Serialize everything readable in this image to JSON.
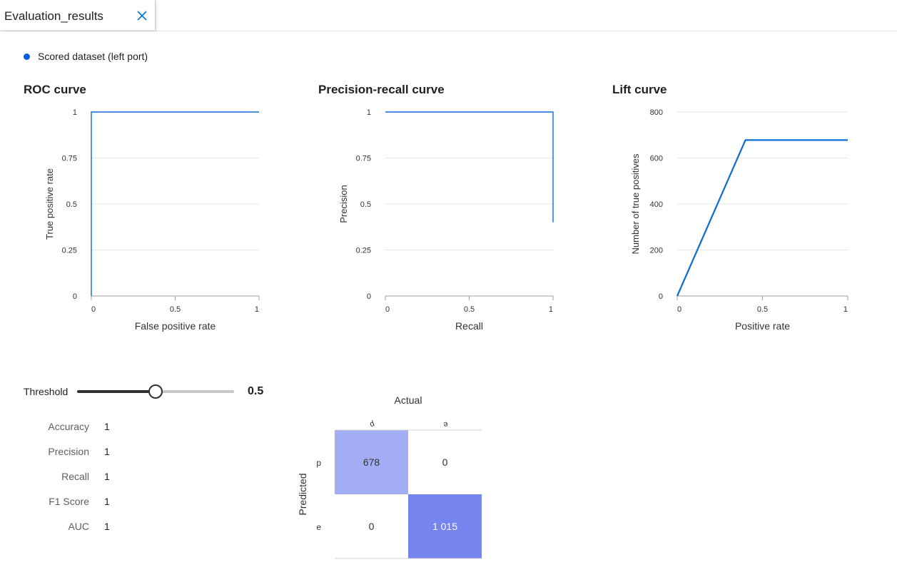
{
  "tab": {
    "title": "Evaluation_results"
  },
  "legend": {
    "label": "Scored dataset (left port)",
    "color": "#0b5ed7"
  },
  "colors": {
    "line": "#0b6bd3",
    "grid": "#e6e6e6",
    "axis": "#a19f9d",
    "text": "#323130"
  },
  "chart_data": [
    {
      "type": "line",
      "title": "ROC curve",
      "xlabel": "False positive rate",
      "ylabel": "True positive rate",
      "xlim": [
        0,
        1
      ],
      "ylim": [
        0,
        1
      ],
      "xticks": [
        "0",
        "0.5",
        "1"
      ],
      "yticks": [
        "0",
        "0.25",
        "0.5",
        "0.75",
        "1"
      ],
      "grid": true,
      "series": [
        {
          "x": [
            0,
            0,
            1
          ],
          "y": [
            0,
            1,
            1
          ]
        }
      ]
    },
    {
      "type": "line",
      "title": "Precision-recall curve",
      "xlabel": "Recall",
      "ylabel": "Precision",
      "xlim": [
        0,
        1
      ],
      "ylim": [
        0,
        1
      ],
      "xticks": [
        "0",
        "0.5",
        "1"
      ],
      "yticks": [
        "0",
        "0.25",
        "0.5",
        "0.75",
        "1"
      ],
      "grid": true,
      "series": [
        {
          "x": [
            0,
            1,
            1
          ],
          "y": [
            1,
            1,
            0.4
          ]
        }
      ]
    },
    {
      "type": "line",
      "title": "Lift curve",
      "xlabel": "Positive rate",
      "ylabel": "Number of true positives",
      "xlim": [
        0,
        1
      ],
      "ylim": [
        0,
        800
      ],
      "xticks": [
        "0",
        "0.5",
        "1"
      ],
      "yticks": [
        "0",
        "200",
        "400",
        "600",
        "800"
      ],
      "grid": true,
      "series": [
        {
          "x": [
            0,
            0.4,
            1
          ],
          "y": [
            0,
            678,
            678
          ]
        }
      ]
    }
  ],
  "threshold": {
    "label": "Threshold",
    "value": "0.5",
    "fraction": 0.5
  },
  "metrics": [
    {
      "label": "Accuracy",
      "value": "1"
    },
    {
      "label": "Precision",
      "value": "1"
    },
    {
      "label": "Recall",
      "value": "1"
    },
    {
      "label": "F1 Score",
      "value": "1"
    },
    {
      "label": "AUC",
      "value": "1"
    }
  ],
  "confusion_matrix": {
    "type": "heatmap",
    "xlabel": "Actual",
    "ylabel": "Predicted",
    "col_labels": [
      "p",
      "e"
    ],
    "row_labels": [
      "p",
      "e"
    ],
    "values": [
      [
        678,
        0
      ],
      [
        0,
        1015
      ]
    ],
    "display": [
      [
        "678",
        "0"
      ],
      [
        "0",
        "1 015"
      ]
    ],
    "max_value": 1015,
    "cell_color": "#7584ee"
  }
}
